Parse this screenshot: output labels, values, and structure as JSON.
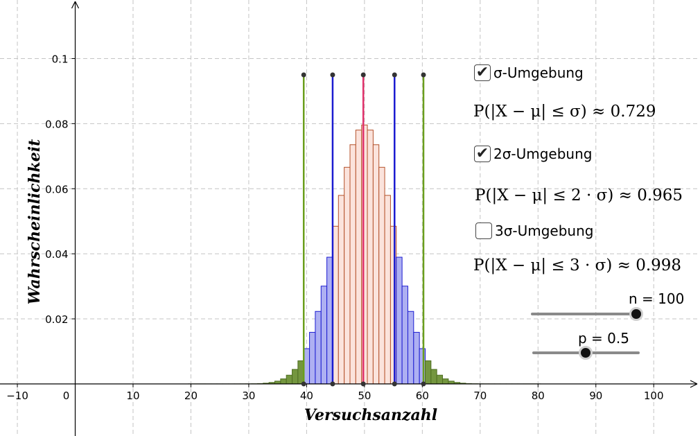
{
  "chart_data": {
    "type": "bar",
    "xlabel": "Versuchsanzahl",
    "ylabel": "Wahrscheinlichkeit",
    "xlim": [
      -13,
      108
    ],
    "ylim": [
      -0.016,
      0.118
    ],
    "x_ticks": [
      -10,
      0,
      10,
      20,
      30,
      40,
      50,
      60,
      70,
      80,
      90,
      100
    ],
    "y_ticks": [
      0.02,
      0.04,
      0.06,
      0.08,
      0.1
    ],
    "x_tick_labels": [
      "−10",
      "0",
      "10",
      "20",
      "30",
      "40",
      "50",
      "60",
      "70",
      "80",
      "90",
      "100"
    ],
    "y_tick_labels": [
      "0.02",
      "0.04",
      "0.06",
      "0.08",
      "0.1"
    ],
    "grid": true,
    "distribution": {
      "n": 100,
      "p": 0.5
    },
    "mu": 50,
    "sigma": 5,
    "intervals": [
      {
        "name": "σ-Umgebung",
        "from": 45,
        "to": 55,
        "fill": "#fbe3dc",
        "stroke": "#b4512a"
      },
      {
        "name": "2σ-Umgebung",
        "from": 40,
        "to": 60,
        "fill": "#aeb0f2",
        "stroke": "#1a1ad0"
      },
      {
        "name": "outside",
        "fill": "#74963f",
        "stroke": "#4e6e22"
      }
    ],
    "marker_lines": [
      {
        "x": 39.5,
        "color": "#6a9e1c"
      },
      {
        "x": 44.5,
        "color": "#1a1ad0"
      },
      {
        "x": 49.8,
        "color": "#e0306a"
      },
      {
        "x": 55.2,
        "color": "#1a1ad0"
      },
      {
        "x": 60.2,
        "color": "#6a9e1c"
      }
    ],
    "marker_line_top": 0.095
  },
  "controls": {
    "sigma1": {
      "label": "σ-Umgebung",
      "checked": true,
      "formula": "P(|X − μ| ≤ σ) ≈ 0.729"
    },
    "sigma2": {
      "label": "2σ-Umgebung",
      "checked": true,
      "formula": "P(|X − μ| ≤ 2 · σ) ≈ 0.965"
    },
    "sigma3": {
      "label": "3σ-Umgebung",
      "checked": false,
      "formula": "P(|X − μ| ≤ 3 · σ) ≈ 0.998"
    }
  },
  "sliders": {
    "n": {
      "label": "n = 100",
      "value": 100,
      "min": 0,
      "max": 100
    },
    "p": {
      "label": "p = 0.5",
      "value": 0.5,
      "min": 0,
      "max": 1
    }
  }
}
